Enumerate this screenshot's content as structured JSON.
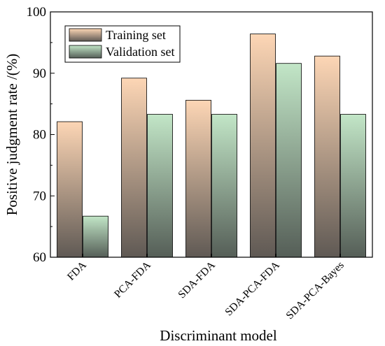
{
  "chart_data": {
    "type": "bar",
    "title": "",
    "xlabel": "Discriminant model",
    "ylabel": "Positive judgment rate /(%)",
    "categories": [
      "FDA",
      "PCA-FDA",
      "SDA-FDA",
      "SDA-PCA-FDA",
      "SDA-PCA-Bayes"
    ],
    "series": [
      {
        "name": "Training set",
        "values": [
          82.1,
          89.2,
          85.6,
          96.4,
          92.8
        ],
        "color_top": "#fdd6b5",
        "color_bottom": "#5f5954"
      },
      {
        "name": "Validation set",
        "values": [
          66.7,
          83.3,
          83.3,
          91.6,
          83.3
        ],
        "color_top": "#c2e6c7",
        "color_bottom": "#555e57"
      }
    ],
    "ylim": [
      60,
      100
    ],
    "yticks": [
      60,
      70,
      80,
      90,
      100
    ],
    "grid": false,
    "legend_position": "top-left"
  }
}
